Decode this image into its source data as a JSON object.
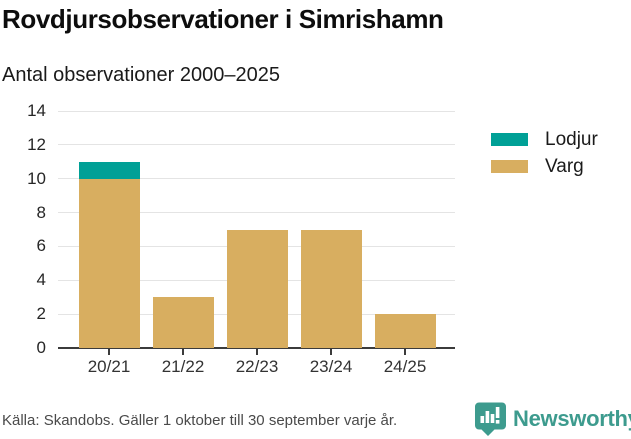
{
  "header": {
    "title": "Rovdjursobservationer i Simrishamn",
    "subtitle": "Antal observationer 2000–2025"
  },
  "chart_data": {
    "type": "bar",
    "stacked": true,
    "title": "Rovdjursobservationer i Simrishamn",
    "subtitle": "Antal observationer 2000–2025",
    "categories": [
      "20/21",
      "21/22",
      "22/23",
      "23/24",
      "24/25"
    ],
    "series": [
      {
        "name": "Lodjur",
        "color": "#00a096",
        "values": [
          1,
          0,
          0,
          0,
          0
        ]
      },
      {
        "name": "Varg",
        "color": "#d8ae60",
        "values": [
          10,
          3,
          7,
          7,
          2
        ]
      }
    ],
    "totals": [
      11,
      3,
      7,
      7,
      2
    ],
    "xlabel": "",
    "ylabel": "",
    "ylim": [
      0,
      14
    ],
    "yticks": [
      0,
      2,
      4,
      6,
      8,
      10,
      12,
      14
    ],
    "grid": true,
    "legend_position": "right"
  },
  "footer": {
    "source": "Källa: Skandobs. Gäller 1 oktober till 30 september varje år.",
    "brand": "Newsworthy"
  },
  "colors": {
    "lodjur": "#00a096",
    "varg": "#d8ae60",
    "brand_teal": "#3d9b8e",
    "gridline": "#e4e4e4",
    "axis": "#3b3b3b"
  }
}
